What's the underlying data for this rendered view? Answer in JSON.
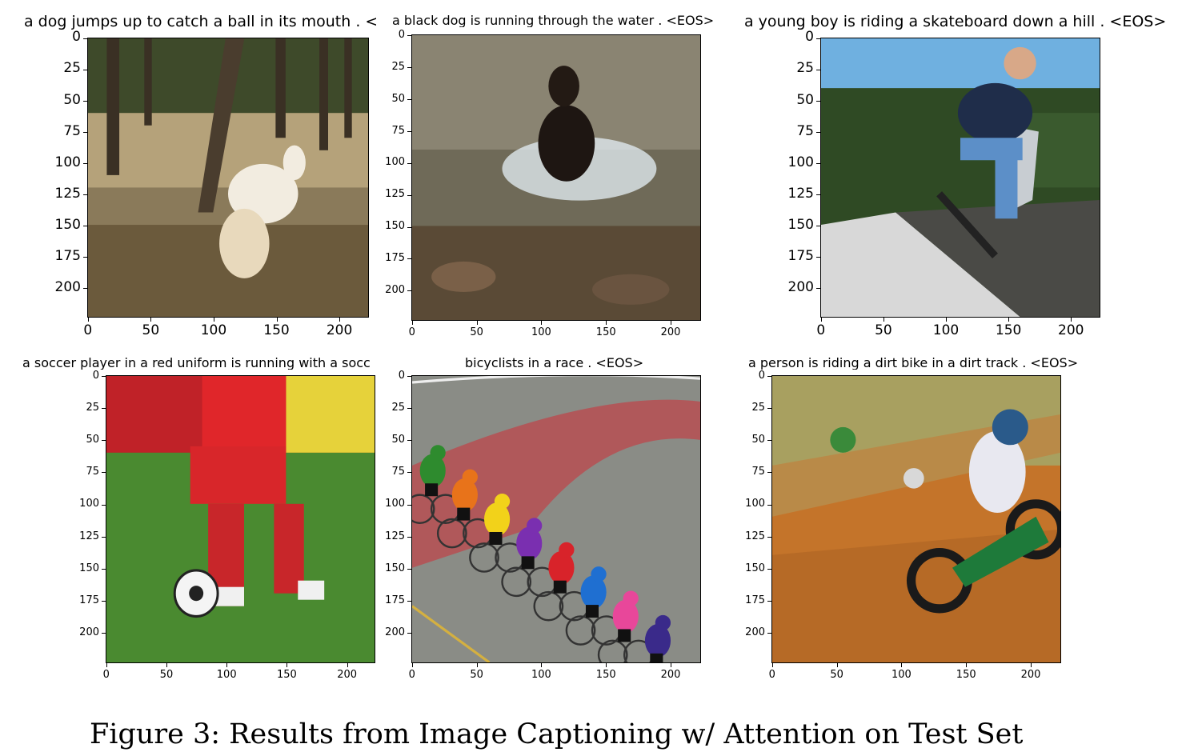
{
  "figure": {
    "caption": "Figure 3: Results from Image Captioning w/ Attention on Test Set"
  },
  "panels": [
    {
      "title": "a dog jumps up to catch a ball in its mouth . <",
      "scene": "forest-dog",
      "x_ticks": [
        "0",
        "50",
        "100",
        "150",
        "200"
      ],
      "y_ticks": [
        "0",
        "25",
        "50",
        "75",
        "100",
        "125",
        "150",
        "175",
        "200"
      ]
    },
    {
      "title": "a black dog is running through the water . <EOS>",
      "scene": "water-dog",
      "x_ticks": [
        "0",
        "50",
        "100",
        "150",
        "200"
      ],
      "y_ticks": [
        "0",
        "25",
        "50",
        "75",
        "100",
        "125",
        "150",
        "175",
        "200"
      ]
    },
    {
      "title": "a young boy is riding a skateboard down a hill . <EOS>",
      "scene": "skateboard",
      "x_ticks": [
        "0",
        "50",
        "100",
        "150",
        "200"
      ],
      "y_ticks": [
        "0",
        "25",
        "50",
        "75",
        "100",
        "125",
        "150",
        "175",
        "200"
      ]
    },
    {
      "title": "a soccer player in a red uniform is running with a socc",
      "scene": "soccer",
      "x_ticks": [
        "0",
        "50",
        "100",
        "150",
        "200"
      ],
      "y_ticks": [
        "0",
        "25",
        "50",
        "75",
        "100",
        "125",
        "150",
        "175",
        "200"
      ]
    },
    {
      "title": "bicyclists in a race . <EOS>",
      "scene": "cyclists",
      "x_ticks": [
        "0",
        "50",
        "100",
        "150",
        "200"
      ],
      "y_ticks": [
        "0",
        "25",
        "50",
        "75",
        "100",
        "125",
        "150",
        "175",
        "200"
      ]
    },
    {
      "title": "a person is riding a dirt bike in a dirt track . <EOS>",
      "scene": "dirtbike",
      "x_ticks": [
        "0",
        "50",
        "100",
        "150",
        "200"
      ],
      "y_ticks": [
        "0",
        "25",
        "50",
        "75",
        "100",
        "125",
        "150",
        "175",
        "200"
      ]
    }
  ],
  "colors": {
    "axis": "#000000",
    "cyclist_jerseys": [
      "#2e8b2e",
      "#e8731a",
      "#f2d21a",
      "#7a2fb0",
      "#d8232a",
      "#1f6fd1",
      "#e8479a",
      "#3a2a8a"
    ]
  }
}
